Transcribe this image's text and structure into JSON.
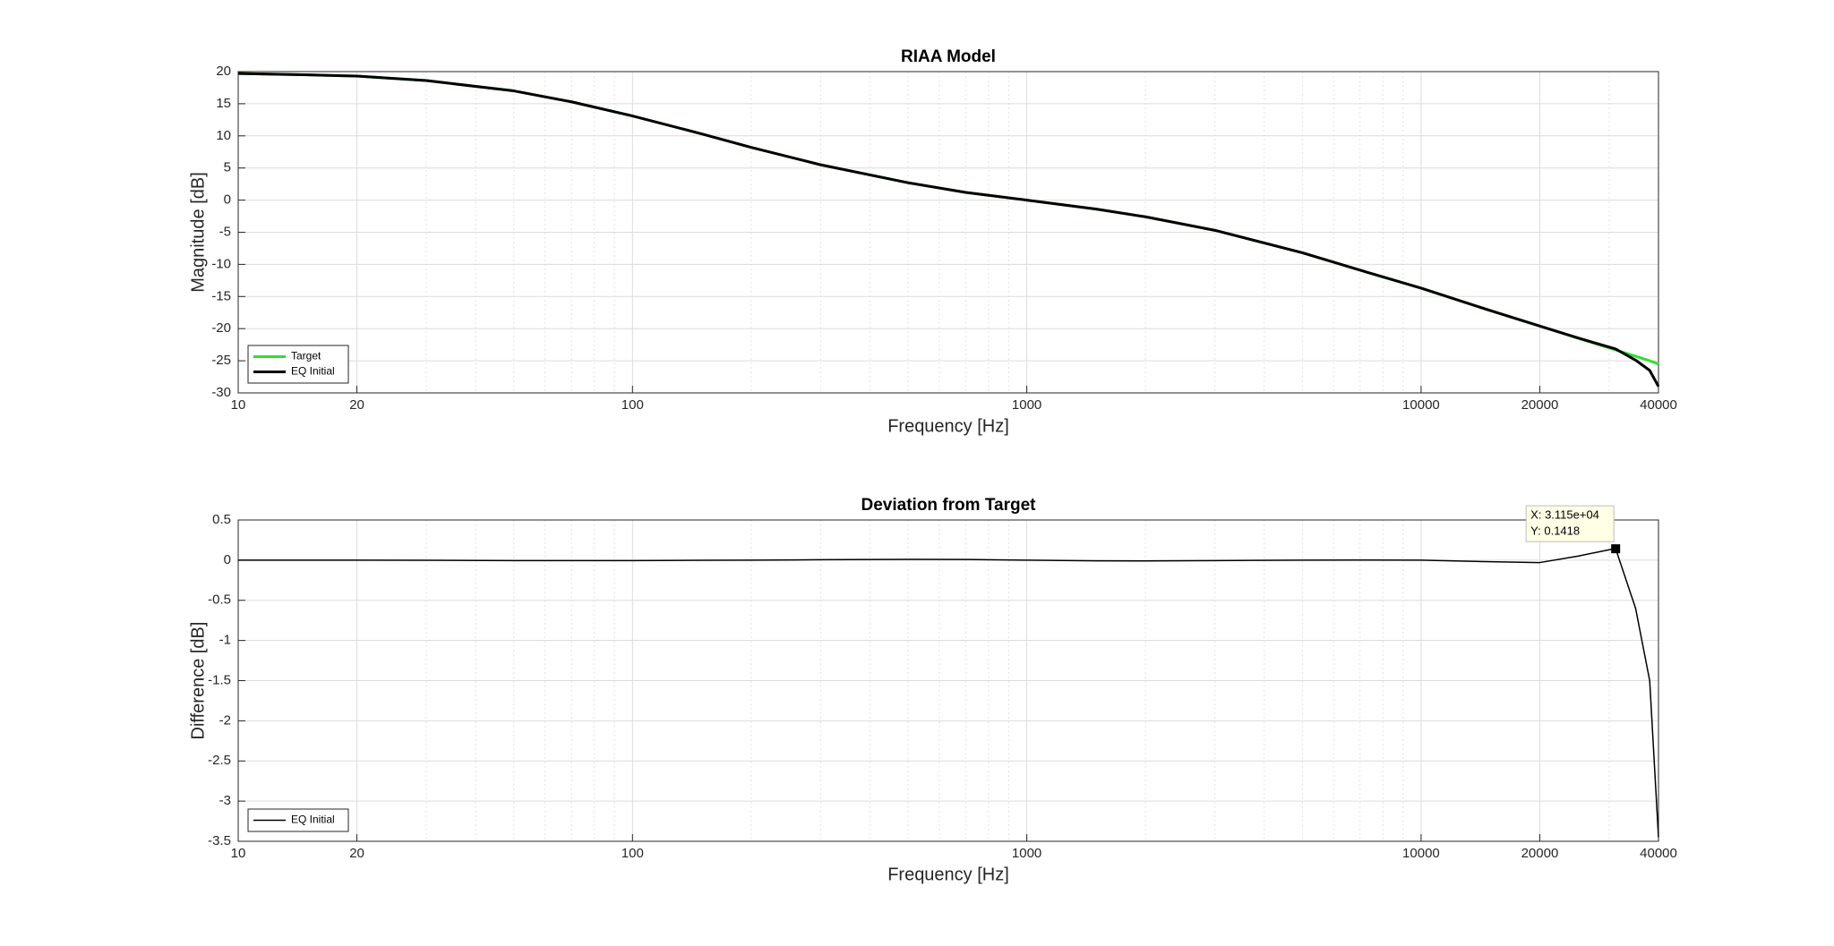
{
  "chart_data": [
    {
      "type": "line",
      "title": "RIAA Model",
      "xlabel": "Frequency [Hz]",
      "ylabel": "Magnitude [dB]",
      "xscale": "log",
      "grid": true,
      "legend": "lower left",
      "x": [
        10,
        15,
        20,
        30,
        50,
        70,
        100,
        150,
        200,
        300,
        500,
        700,
        1000,
        1500,
        2000,
        3000,
        5000,
        7000,
        10000,
        15000,
        20000,
        25000,
        30000,
        31150,
        35000,
        38000,
        40000
      ],
      "series": [
        {
          "name": "Target",
          "color": "#2ee02e",
          "width": 3,
          "values": [
            19.7,
            19.5,
            19.3,
            18.6,
            17.0,
            15.3,
            13.1,
            10.3,
            8.2,
            5.5,
            2.7,
            1.2,
            0,
            -1.4,
            -2.6,
            -4.7,
            -8.2,
            -10.9,
            -13.7,
            -17.2,
            -19.6,
            -21.5,
            -23.0,
            -23.3,
            -24.3,
            -25.0,
            -25.5
          ]
        },
        {
          "name": "EQ Initial",
          "color": "#000000",
          "width": 3,
          "values": [
            19.7,
            19.5,
            19.3,
            18.6,
            17.0,
            15.3,
            13.1,
            10.3,
            8.2,
            5.5,
            2.7,
            1.2,
            0,
            -1.4,
            -2.6,
            -4.7,
            -8.2,
            -10.9,
            -13.7,
            -17.2,
            -19.6,
            -21.45,
            -22.87,
            -23.16,
            -24.9,
            -26.5,
            -29.0
          ]
        }
      ],
      "xlim": [
        10,
        40000
      ],
      "ylim": [
        -30,
        20
      ],
      "xticks": [
        10,
        20,
        100,
        1000,
        10000,
        20000,
        40000
      ],
      "xminorticks": [
        30,
        40,
        50,
        60,
        70,
        80,
        90,
        200,
        300,
        400,
        500,
        600,
        700,
        800,
        900,
        2000,
        3000,
        4000,
        5000,
        6000,
        7000,
        8000,
        9000,
        30000
      ],
      "yticks": [
        -30,
        -25,
        -20,
        -15,
        -10,
        -5,
        0,
        5,
        10,
        15,
        20
      ]
    },
    {
      "type": "line",
      "title": "Deviation from Target",
      "xlabel": "Frequency [Hz]",
      "ylabel": "Difference [dB]",
      "xscale": "log",
      "grid": true,
      "legend": "lower left",
      "x": [
        10,
        15,
        20,
        30,
        50,
        70,
        100,
        150,
        200,
        300,
        500,
        700,
        1000,
        1500,
        2000,
        3000,
        5000,
        7000,
        10000,
        15000,
        20000,
        25000,
        30000,
        31150,
        35000,
        38000,
        40000
      ],
      "series": [
        {
          "name": "EQ Initial",
          "color": "#000000",
          "width": 1.5,
          "values": [
            0,
            0,
            0,
            -0.002,
            -0.005,
            -0.006,
            -0.005,
            -0.002,
            0,
            0.005,
            0.01,
            0.008,
            0,
            -0.008,
            -0.01,
            -0.005,
            0,
            0.002,
            0,
            -0.02,
            -0.03,
            0.05,
            0.13,
            0.1418,
            -0.6,
            -1.5,
            -3.45
          ]
        }
      ],
      "xlim": [
        10,
        40000
      ],
      "ylim": [
        -3.5,
        0.5
      ],
      "xticks": [
        10,
        20,
        100,
        1000,
        10000,
        20000,
        40000
      ],
      "xminorticks": [
        30,
        40,
        50,
        60,
        70,
        80,
        90,
        200,
        300,
        400,
        500,
        600,
        700,
        800,
        900,
        2000,
        3000,
        4000,
        5000,
        6000,
        7000,
        8000,
        9000,
        30000
      ],
      "yticks": [
        -3.5,
        -3,
        -2.5,
        -2,
        -1.5,
        -1,
        -0.5,
        0,
        0.5
      ],
      "datatip": {
        "x": 31150,
        "y": 0.1418,
        "x_label": "X: 3.115e+04",
        "y_label": "Y: 0.1418"
      }
    }
  ]
}
